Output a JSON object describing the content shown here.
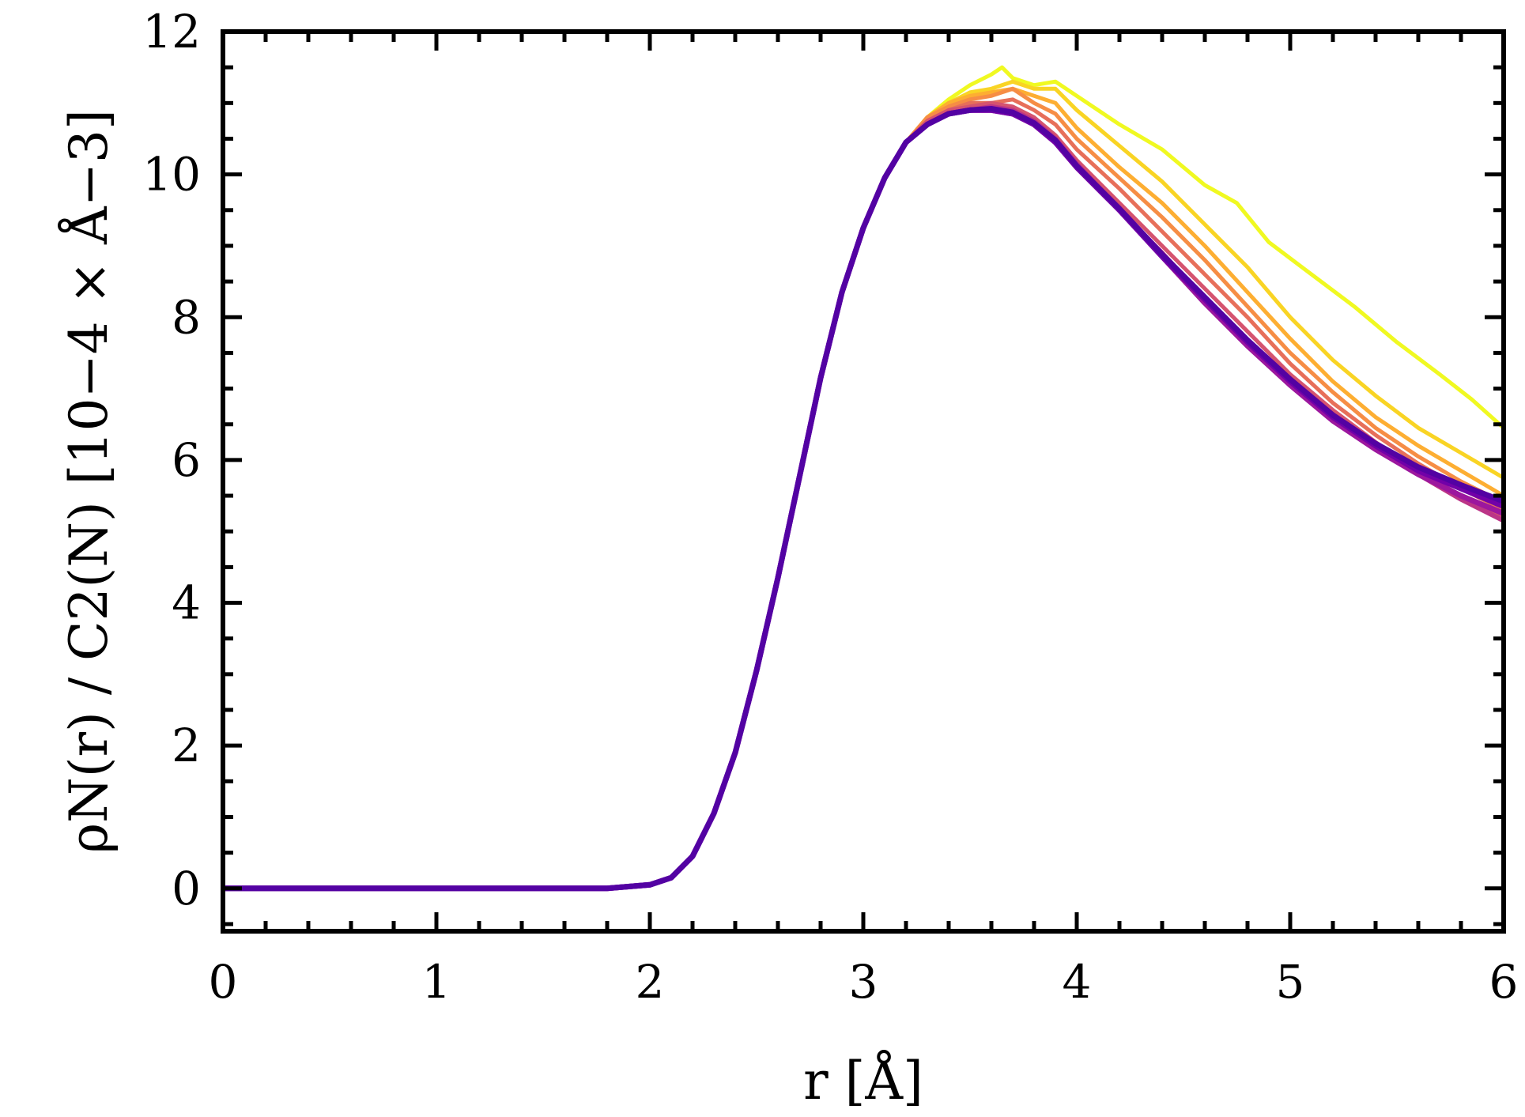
{
  "chart_data": {
    "type": "line",
    "title": "",
    "xlabel": "r [Å]",
    "ylabel": "ρN(r) / C2(N) [10−4 × Å−3]",
    "xlim": [
      0,
      6
    ],
    "ylim": [
      -0.6,
      12
    ],
    "xticks": [
      "0",
      "1",
      "2",
      "3",
      "4",
      "5",
      "6"
    ],
    "yticks": [
      "0",
      "2",
      "4",
      "6",
      "8",
      "10",
      "12"
    ],
    "grid": false,
    "legend": "none",
    "colormap": "plasma (yellow to purple)",
    "series": [
      {
        "color": "#f0f921",
        "width": 5,
        "x": [
          0,
          1.8,
          2.0,
          2.1,
          2.2,
          2.3,
          2.4,
          2.5,
          2.6,
          2.7,
          2.8,
          2.9,
          3.0,
          3.1,
          3.2,
          3.3,
          3.4,
          3.5,
          3.6,
          3.65,
          3.7,
          3.8,
          3.9,
          4.0,
          4.2,
          4.4,
          4.6,
          4.75,
          4.9,
          5.1,
          5.3,
          5.5,
          5.7,
          5.85,
          6.0
        ],
        "y": [
          0,
          0,
          0.05,
          0.15,
          0.45,
          1.05,
          1.9,
          3.05,
          4.35,
          5.75,
          7.15,
          8.35,
          9.25,
          9.95,
          10.45,
          10.8,
          11.05,
          11.25,
          11.4,
          11.5,
          11.35,
          11.25,
          11.3,
          11.1,
          10.7,
          10.35,
          9.85,
          9.6,
          9.05,
          8.6,
          8.15,
          7.65,
          7.2,
          6.85,
          6.45
        ]
      },
      {
        "color": "#f9d424",
        "width": 5,
        "x": [
          0,
          1.8,
          2.0,
          2.1,
          2.2,
          2.3,
          2.4,
          2.5,
          2.6,
          2.7,
          2.8,
          2.9,
          3.0,
          3.1,
          3.2,
          3.3,
          3.4,
          3.5,
          3.6,
          3.7,
          3.8,
          3.9,
          4.0,
          4.2,
          4.4,
          4.6,
          4.8,
          5.0,
          5.2,
          5.4,
          5.6,
          5.8,
          6.0
        ],
        "y": [
          0,
          0,
          0.05,
          0.15,
          0.45,
          1.05,
          1.9,
          3.05,
          4.35,
          5.75,
          7.15,
          8.35,
          9.25,
          9.95,
          10.45,
          10.8,
          11.0,
          11.15,
          11.2,
          11.3,
          11.2,
          11.2,
          10.9,
          10.4,
          9.9,
          9.3,
          8.7,
          8.0,
          7.4,
          6.9,
          6.45,
          6.1,
          5.75
        ]
      },
      {
        "color": "#fdae32",
        "width": 5,
        "x": [
          0,
          1.8,
          2.0,
          2.1,
          2.2,
          2.3,
          2.4,
          2.5,
          2.6,
          2.7,
          2.8,
          2.9,
          3.0,
          3.1,
          3.2,
          3.3,
          3.4,
          3.5,
          3.6,
          3.7,
          3.8,
          3.9,
          4.0,
          4.2,
          4.4,
          4.6,
          4.8,
          5.0,
          5.2,
          5.4,
          5.6,
          5.8,
          6.0
        ],
        "y": [
          0,
          0,
          0.05,
          0.15,
          0.45,
          1.05,
          1.9,
          3.05,
          4.35,
          5.75,
          7.15,
          8.35,
          9.25,
          9.95,
          10.45,
          10.8,
          11.0,
          11.1,
          11.15,
          11.2,
          11.1,
          11.0,
          10.65,
          10.1,
          9.6,
          9.0,
          8.35,
          7.7,
          7.1,
          6.6,
          6.2,
          5.85,
          5.5
        ]
      },
      {
        "color": "#f68d45",
        "width": 5,
        "x": [
          0,
          1.8,
          2.0,
          2.1,
          2.2,
          2.3,
          2.4,
          2.5,
          2.6,
          2.7,
          2.8,
          2.9,
          3.0,
          3.1,
          3.2,
          3.3,
          3.4,
          3.5,
          3.6,
          3.7,
          3.8,
          3.9,
          4.0,
          4.2,
          4.4,
          4.6,
          4.8,
          5.0,
          5.2,
          5.4,
          5.6,
          5.8,
          6.0
        ],
        "y": [
          0,
          0,
          0.05,
          0.15,
          0.45,
          1.05,
          1.9,
          3.05,
          4.35,
          5.75,
          7.15,
          8.35,
          9.25,
          9.95,
          10.45,
          10.8,
          10.95,
          11.05,
          11.1,
          11.2,
          11.0,
          10.85,
          10.5,
          9.95,
          9.4,
          8.8,
          8.15,
          7.5,
          6.95,
          6.45,
          6.05,
          5.7,
          5.4
        ]
      },
      {
        "color": "#e76f5a",
        "width": 5,
        "x": [
          0,
          1.8,
          2.0,
          2.1,
          2.2,
          2.3,
          2.4,
          2.5,
          2.6,
          2.7,
          2.8,
          2.9,
          3.0,
          3.1,
          3.2,
          3.3,
          3.4,
          3.5,
          3.6,
          3.7,
          3.8,
          3.9,
          4.0,
          4.2,
          4.4,
          4.6,
          4.8,
          5.0,
          5.2,
          5.4,
          5.6,
          5.8,
          6.0
        ],
        "y": [
          0,
          0,
          0.05,
          0.15,
          0.45,
          1.05,
          1.9,
          3.05,
          4.35,
          5.75,
          7.15,
          8.35,
          9.25,
          9.95,
          10.45,
          10.75,
          10.9,
          11.0,
          11.0,
          11.05,
          10.9,
          10.7,
          10.35,
          9.8,
          9.2,
          8.6,
          8.0,
          7.35,
          6.8,
          6.35,
          5.95,
          5.6,
          5.3
        ]
      },
      {
        "color": "#d5536f",
        "width": 5,
        "x": [
          0,
          1.8,
          2.0,
          2.1,
          2.2,
          2.3,
          2.4,
          2.5,
          2.6,
          2.7,
          2.8,
          2.9,
          3.0,
          3.1,
          3.2,
          3.3,
          3.4,
          3.5,
          3.6,
          3.7,
          3.8,
          3.9,
          4.0,
          4.2,
          4.4,
          4.6,
          4.8,
          5.0,
          5.2,
          5.4,
          5.6,
          5.8,
          6.0
        ],
        "y": [
          0,
          0,
          0.05,
          0.15,
          0.45,
          1.05,
          1.9,
          3.05,
          4.35,
          5.75,
          7.15,
          8.35,
          9.25,
          9.95,
          10.45,
          10.75,
          10.9,
          10.95,
          11.0,
          10.95,
          10.8,
          10.55,
          10.2,
          9.6,
          9.0,
          8.4,
          7.8,
          7.2,
          6.7,
          6.25,
          5.85,
          5.5,
          5.2
        ]
      },
      {
        "color": "#bc3587",
        "width": 6,
        "x": [
          0,
          1.8,
          2.0,
          2.1,
          2.2,
          2.3,
          2.4,
          2.5,
          2.6,
          2.7,
          2.8,
          2.9,
          3.0,
          3.1,
          3.2,
          3.3,
          3.4,
          3.5,
          3.6,
          3.7,
          3.8,
          3.9,
          4.0,
          4.2,
          4.4,
          4.6,
          4.8,
          5.0,
          5.2,
          5.4,
          5.6,
          5.8,
          6.0
        ],
        "y": [
          0,
          0,
          0.05,
          0.15,
          0.45,
          1.05,
          1.9,
          3.05,
          4.35,
          5.75,
          7.15,
          8.35,
          9.25,
          9.95,
          10.45,
          10.7,
          10.85,
          10.9,
          10.95,
          10.9,
          10.75,
          10.5,
          10.15,
          9.5,
          8.9,
          8.25,
          7.65,
          7.1,
          6.6,
          6.15,
          5.8,
          5.45,
          5.15
        ]
      },
      {
        "color": "#9c179e",
        "width": 7,
        "x": [
          0,
          1.8,
          2.0,
          2.1,
          2.2,
          2.3,
          2.4,
          2.5,
          2.6,
          2.7,
          2.8,
          2.9,
          3.0,
          3.1,
          3.2,
          3.3,
          3.4,
          3.5,
          3.6,
          3.7,
          3.8,
          3.9,
          4.0,
          4.2,
          4.4,
          4.6,
          4.8,
          5.0,
          5.2,
          5.4,
          5.6,
          5.8,
          6.0
        ],
        "y": [
          0,
          0,
          0.05,
          0.15,
          0.45,
          1.05,
          1.9,
          3.05,
          4.35,
          5.75,
          7.15,
          8.35,
          9.25,
          9.95,
          10.45,
          10.7,
          10.85,
          10.9,
          10.9,
          10.85,
          10.7,
          10.45,
          10.1,
          9.5,
          8.85,
          8.2,
          7.6,
          7.05,
          6.55,
          6.15,
          5.8,
          5.5,
          5.25
        ]
      },
      {
        "color": "#7201a8",
        "width": 7,
        "x": [
          0,
          1.8,
          2.0,
          2.1,
          2.2,
          2.3,
          2.4,
          2.5,
          2.6,
          2.7,
          2.8,
          2.9,
          3.0,
          3.1,
          3.2,
          3.3,
          3.4,
          3.5,
          3.6,
          3.7,
          3.8,
          3.9,
          4.0,
          4.2,
          4.4,
          4.6,
          4.8,
          5.0,
          5.2,
          5.4,
          5.6,
          5.8,
          6.0
        ],
        "y": [
          0,
          0,
          0.05,
          0.15,
          0.45,
          1.05,
          1.9,
          3.05,
          4.35,
          5.75,
          7.15,
          8.35,
          9.25,
          9.95,
          10.45,
          10.7,
          10.85,
          10.9,
          10.9,
          10.85,
          10.7,
          10.45,
          10.1,
          9.5,
          8.85,
          8.25,
          7.65,
          7.1,
          6.6,
          6.2,
          5.85,
          5.6,
          5.35
        ]
      },
      {
        "color": "#5302a3",
        "width": 7,
        "x": [
          0,
          1.8,
          2.0,
          2.1,
          2.2,
          2.3,
          2.4,
          2.5,
          2.6,
          2.7,
          2.8,
          2.9,
          3.0,
          3.1,
          3.2,
          3.3,
          3.4,
          3.5,
          3.6,
          3.7,
          3.8,
          3.9,
          4.0,
          4.2,
          4.4,
          4.6,
          4.8,
          5.0,
          5.2,
          5.4,
          5.6,
          5.8,
          6.0
        ],
        "y": [
          0,
          0,
          0.05,
          0.15,
          0.45,
          1.05,
          1.9,
          3.05,
          4.35,
          5.75,
          7.15,
          8.35,
          9.25,
          9.95,
          10.45,
          10.7,
          10.85,
          10.9,
          10.92,
          10.87,
          10.72,
          10.48,
          10.12,
          9.52,
          8.88,
          8.28,
          7.68,
          7.13,
          6.63,
          6.23,
          5.9,
          5.65,
          5.42
        ]
      }
    ]
  }
}
